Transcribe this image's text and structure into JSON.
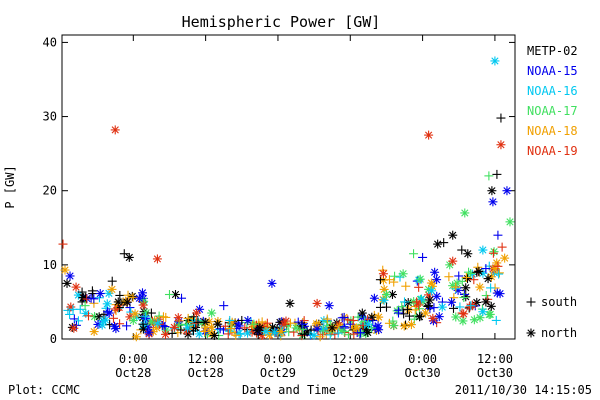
{
  "chart_data": {
    "type": "scatter",
    "title": "Hemispheric Power [GW]",
    "xlabel": "Date and Time",
    "ylabel": "P [GW]",
    "ylim": [
      0,
      41
    ],
    "xlim": [
      "2011-10-27 12:10",
      "2011-10-30 15:20"
    ],
    "grid": false,
    "legend_position": "right",
    "yticks": [
      {
        "value": 0,
        "label": "0"
      },
      {
        "value": 10,
        "label": "10"
      },
      {
        "value": 20,
        "label": "20"
      },
      {
        "value": 30,
        "label": "30"
      },
      {
        "value": 40,
        "label": "40"
      }
    ],
    "xticks": [
      {
        "value": "2011-10-28 00:00",
        "time": "0:00",
        "date": "Oct28"
      },
      {
        "value": "2011-10-28 12:00",
        "time": "12:00",
        "date": "Oct28"
      },
      {
        "value": "2011-10-29 00:00",
        "time": "0:00",
        "date": "Oct29"
      },
      {
        "value": "2011-10-29 12:00",
        "time": "12:00",
        "date": "Oct29"
      },
      {
        "value": "2011-10-30 00:00",
        "time": "0:00",
        "date": "Oct30"
      },
      {
        "value": "2011-10-30 12:00",
        "time": "12:00",
        "date": "Oct30"
      }
    ],
    "marker_legend": [
      {
        "symbol": "+",
        "label": "south"
      },
      {
        "symbol": "*",
        "label": "north"
      }
    ],
    "series": [
      {
        "name": "METP-02",
        "color": "#000000",
        "points": [
          {
            "x": "2011-10-27 13:00",
            "y": 7.5,
            "m": "*"
          },
          {
            "x": "2011-10-27 15:30",
            "y": 5.0,
            "m": "+"
          },
          {
            "x": "2011-10-27 18:20",
            "y": 3.0,
            "m": "*"
          },
          {
            "x": "2011-10-27 20:30",
            "y": 7.8,
            "m": "+"
          },
          {
            "x": "2011-10-27 21:30",
            "y": 5.0,
            "m": "*"
          },
          {
            "x": "2011-10-27 22:30",
            "y": 11.5,
            "m": "+"
          },
          {
            "x": "2011-10-27 23:20",
            "y": 11.0,
            "m": "*"
          },
          {
            "x": "2011-10-28 03:00",
            "y": 3.5,
            "m": "+"
          },
          {
            "x": "2011-10-28 07:00",
            "y": 6.0,
            "m": "*"
          },
          {
            "x": "2011-10-28 10:00",
            "y": 3.0,
            "m": "+"
          },
          {
            "x": "2011-10-28 14:00",
            "y": 2.0,
            "m": "*"
          },
          {
            "x": "2011-10-28 18:00",
            "y": 2.5,
            "m": "+"
          },
          {
            "x": "2011-10-28 21:00",
            "y": 1.5,
            "m": "*"
          },
          {
            "x": "2011-10-29 02:00",
            "y": 4.8,
            "m": "*"
          },
          {
            "x": "2011-10-29 05:30",
            "y": 1.2,
            "m": "+"
          },
          {
            "x": "2011-10-29 09:00",
            "y": 1.5,
            "m": "*"
          },
          {
            "x": "2011-10-29 14:00",
            "y": 3.5,
            "m": "*"
          },
          {
            "x": "2011-10-29 17:00",
            "y": 8.0,
            "m": "+"
          },
          {
            "x": "2011-10-29 19:00",
            "y": 6.0,
            "m": "*"
          },
          {
            "x": "2011-10-29 21:30",
            "y": 4.0,
            "m": "+"
          },
          {
            "x": "2011-10-29 23:30",
            "y": 3.0,
            "m": "*"
          },
          {
            "x": "2011-10-30 01:00",
            "y": 4.5,
            "m": "+"
          },
          {
            "x": "2011-10-30 02:30",
            "y": 12.8,
            "m": "*"
          },
          {
            "x": "2011-10-30 03:30",
            "y": 13.0,
            "m": "+"
          },
          {
            "x": "2011-10-30 05:00",
            "y": 14.0,
            "m": "*"
          },
          {
            "x": "2011-10-30 06:30",
            "y": 12.0,
            "m": "+"
          },
          {
            "x": "2011-10-30 07:30",
            "y": 11.5,
            "m": "*"
          },
          {
            "x": "2011-10-30 09:00",
            "y": 9.0,
            "m": "+"
          },
          {
            "x": "2011-10-30 10:30",
            "y": 5.0,
            "m": "*"
          },
          {
            "x": "2011-10-30 11:30",
            "y": 20.0,
            "m": "*"
          },
          {
            "x": "2011-10-30 12:20",
            "y": 22.2,
            "m": "+"
          },
          {
            "x": "2011-10-30 13:00",
            "y": 29.8,
            "m": "+"
          }
        ]
      },
      {
        "name": "NOAA-15",
        "color": "#0000ee",
        "points": [
          {
            "x": "2011-10-27 13:30",
            "y": 8.5,
            "m": "*"
          },
          {
            "x": "2011-10-27 17:00",
            "y": 5.5,
            "m": "+"
          },
          {
            "x": "2011-10-27 20:00",
            "y": 3.5,
            "m": "*"
          },
          {
            "x": "2011-10-28 01:00",
            "y": 5.5,
            "m": "*"
          },
          {
            "x": "2011-10-28 08:00",
            "y": 5.5,
            "m": "+"
          },
          {
            "x": "2011-10-28 11:00",
            "y": 4.0,
            "m": "*"
          },
          {
            "x": "2011-10-28 15:00",
            "y": 4.5,
            "m": "+"
          },
          {
            "x": "2011-10-28 19:00",
            "y": 2.5,
            "m": "*"
          },
          {
            "x": "2011-10-28 23:00",
            "y": 7.5,
            "m": "*"
          },
          {
            "x": "2011-10-29 04:00",
            "y": 2.0,
            "m": "+"
          },
          {
            "x": "2011-10-29 08:30",
            "y": 4.5,
            "m": "*"
          },
          {
            "x": "2011-10-29 12:00",
            "y": 2.0,
            "m": "+"
          },
          {
            "x": "2011-10-29 16:00",
            "y": 5.5,
            "m": "*"
          },
          {
            "x": "2011-10-29 20:00",
            "y": 3.5,
            "m": "+"
          },
          {
            "x": "2011-10-30 00:00",
            "y": 11.0,
            "m": "+"
          },
          {
            "x": "2011-10-30 02:00",
            "y": 9.0,
            "m": "*"
          },
          {
            "x": "2011-10-30 06:00",
            "y": 8.5,
            "m": "+"
          },
          {
            "x": "2011-10-30 10:30",
            "y": 9.5,
            "m": "+"
          },
          {
            "x": "2011-10-30 11:40",
            "y": 18.5,
            "m": "*"
          },
          {
            "x": "2011-10-30 12:30",
            "y": 14.0,
            "m": "+"
          },
          {
            "x": "2011-10-30 14:00",
            "y": 20.0,
            "m": "*"
          }
        ]
      },
      {
        "name": "NOAA-16",
        "color": "#00c8f0",
        "points": [
          {
            "x": "2011-10-27 14:00",
            "y": 4.0,
            "m": "+"
          },
          {
            "x": "2011-10-27 19:00",
            "y": 2.5,
            "m": "*"
          },
          {
            "x": "2011-10-28 02:00",
            "y": 3.0,
            "m": "+"
          },
          {
            "x": "2011-10-28 09:00",
            "y": 1.5,
            "m": "*"
          },
          {
            "x": "2011-10-28 16:00",
            "y": 2.5,
            "m": "+"
          },
          {
            "x": "2011-10-28 22:00",
            "y": 1.0,
            "m": "*"
          },
          {
            "x": "2011-10-29 06:00",
            "y": 0.5,
            "m": "*"
          },
          {
            "x": "2011-10-29 10:00",
            "y": 0.8,
            "m": "+"
          },
          {
            "x": "2011-10-29 15:00",
            "y": 2.0,
            "m": "*"
          },
          {
            "x": "2011-10-29 21:00",
            "y": 5.0,
            "m": "+"
          },
          {
            "x": "2011-10-30 01:30",
            "y": 6.5,
            "m": "*"
          },
          {
            "x": "2011-10-30 08:00",
            "y": 4.5,
            "m": "+"
          },
          {
            "x": "2011-10-30 10:00",
            "y": 12.0,
            "m": "*"
          },
          {
            "x": "2011-10-30 12:00",
            "y": 37.5,
            "m": "*"
          }
        ]
      },
      {
        "name": "NOAA-17",
        "color": "#40e060",
        "points": [
          {
            "x": "2011-10-27 16:00",
            "y": 4.5,
            "m": "+"
          },
          {
            "x": "2011-10-28 00:00",
            "y": 2.5,
            "m": "*"
          },
          {
            "x": "2011-10-28 06:00",
            "y": 6.0,
            "m": "+"
          },
          {
            "x": "2011-10-28 13:00",
            "y": 3.5,
            "m": "*"
          },
          {
            "x": "2011-10-28 20:00",
            "y": 2.0,
            "m": "+"
          },
          {
            "x": "2011-10-29 03:00",
            "y": 1.5,
            "m": "*"
          },
          {
            "x": "2011-10-29 11:00",
            "y": 1.0,
            "m": "+"
          },
          {
            "x": "2011-10-29 18:00",
            "y": 6.0,
            "m": "*"
          },
          {
            "x": "2011-10-29 22:30",
            "y": 11.5,
            "m": "+"
          },
          {
            "x": "2011-10-30 04:30",
            "y": 10.0,
            "m": "*"
          },
          {
            "x": "2011-10-30 07:00",
            "y": 17.0,
            "m": "*"
          },
          {
            "x": "2011-10-30 11:00",
            "y": 22.0,
            "m": "+"
          },
          {
            "x": "2011-10-30 14:30",
            "y": 15.8,
            "m": "*"
          }
        ]
      },
      {
        "name": "NOAA-18",
        "color": "#f0a000",
        "points": [
          {
            "x": "2011-10-27 12:40",
            "y": 9.3,
            "m": "*"
          },
          {
            "x": "2011-10-27 17:30",
            "y": 1.0,
            "m": "*"
          },
          {
            "x": "2011-10-28 00:30",
            "y": 0.3,
            "m": "*"
          },
          {
            "x": "2011-10-28 05:00",
            "y": 3.0,
            "m": "+"
          },
          {
            "x": "2011-10-28 12:00",
            "y": 1.5,
            "m": "*"
          },
          {
            "x": "2011-10-28 17:00",
            "y": 0.5,
            "m": "+"
          },
          {
            "x": "2011-10-29 00:30",
            "y": 1.0,
            "m": "*"
          },
          {
            "x": "2011-10-29 07:00",
            "y": 0.3,
            "m": "+"
          },
          {
            "x": "2011-10-29 13:00",
            "y": 1.5,
            "m": "*"
          },
          {
            "x": "2011-10-29 18:30",
            "y": 8.0,
            "m": "+"
          },
          {
            "x": "2011-10-30 00:30",
            "y": 3.5,
            "m": "*"
          },
          {
            "x": "2011-10-30 05:30",
            "y": 7.0,
            "m": "+"
          },
          {
            "x": "2011-10-30 09:30",
            "y": 7.0,
            "m": "*"
          },
          {
            "x": "2011-10-30 12:00",
            "y": 9.5,
            "m": "*"
          }
        ]
      },
      {
        "name": "NOAA-19",
        "color": "#e03010",
        "points": [
          {
            "x": "2011-10-27 12:20",
            "y": 12.8,
            "m": "+"
          },
          {
            "x": "2011-10-27 14:30",
            "y": 7.0,
            "m": "*"
          },
          {
            "x": "2011-10-27 21:00",
            "y": 28.2,
            "m": "*"
          },
          {
            "x": "2011-10-28 04:00",
            "y": 10.8,
            "m": "*"
          },
          {
            "x": "2011-10-28 10:30",
            "y": 3.5,
            "m": "*"
          },
          {
            "x": "2011-10-28 18:30",
            "y": 1.5,
            "m": "+"
          },
          {
            "x": "2011-10-29 01:00",
            "y": 2.0,
            "m": "*"
          },
          {
            "x": "2011-10-29 06:30",
            "y": 4.8,
            "m": "*"
          },
          {
            "x": "2011-10-29 12:30",
            "y": 2.5,
            "m": "+"
          },
          {
            "x": "2011-10-29 17:30",
            "y": 8.8,
            "m": "*"
          },
          {
            "x": "2011-10-29 23:00",
            "y": 5.0,
            "m": "+"
          },
          {
            "x": "2011-10-30 01:00",
            "y": 27.5,
            "m": "*"
          },
          {
            "x": "2011-10-30 05:00",
            "y": 10.5,
            "m": "*"
          },
          {
            "x": "2011-10-30 08:30",
            "y": 8.0,
            "m": "+"
          },
          {
            "x": "2011-10-30 12:30",
            "y": 9.8,
            "m": "+"
          },
          {
            "x": "2011-10-30 13:00",
            "y": 26.2,
            "m": "*"
          }
        ]
      }
    ],
    "background_noise": {
      "description_label": "",
      "x_range": [
        "2011-10-27 13:00",
        "2011-10-30 14:00"
      ]
    }
  },
  "footer": {
    "plot_source": "Plot: CCMC",
    "xlabel": "Date and Time",
    "timestamp": "2011/10/30 14:15:05"
  }
}
